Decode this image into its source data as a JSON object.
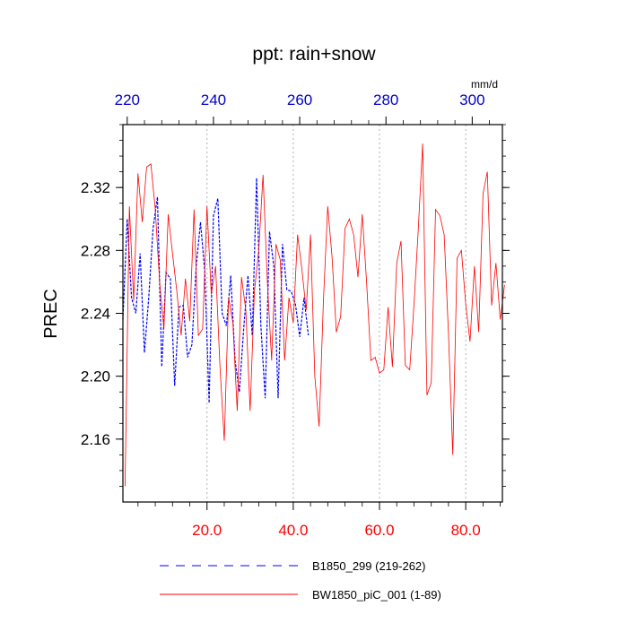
{
  "chart_data": {
    "type": "line",
    "title": "ppt: rain+snow",
    "ylabel": "PREC",
    "top_axis_units": "mm/d",
    "ylim": [
      2.12,
      2.36
    ],
    "y_ticks": [
      "2.16",
      "2.20",
      "2.24",
      "2.28",
      "2.32"
    ],
    "y_tick_values": [
      2.16,
      2.2,
      2.24,
      2.28,
      2.32
    ],
    "bottom_axis": {
      "range": [
        0.5,
        88.5
      ],
      "ticks": [
        "20.0",
        "40.0",
        "60.0",
        "80.0"
      ],
      "tick_values": [
        20,
        40,
        60,
        80
      ],
      "color": "#ff0000"
    },
    "top_axis": {
      "range": [
        219,
        307
      ],
      "ticks": [
        "220",
        "240",
        "260",
        "280",
        "300"
      ],
      "tick_values": [
        220,
        240,
        260,
        280,
        300
      ],
      "color": "#0000cc"
    },
    "grid": "vertical dashed at bottom-axis ticks",
    "legend_position": "bottom",
    "series": [
      {
        "name": "B1850_299 (219-262)",
        "axis": "top",
        "color": "#0000ff",
        "dash": "dashed",
        "x": [
          219,
          220,
          221,
          222,
          223,
          224,
          225,
          226,
          227,
          228,
          229,
          230,
          231,
          232,
          233,
          234,
          235,
          236,
          237,
          238,
          239,
          240,
          241,
          242,
          243,
          244,
          245,
          246,
          247,
          248,
          249,
          250,
          251,
          252,
          253,
          254,
          255,
          256,
          257,
          258,
          259,
          260,
          261,
          262
        ],
        "values": [
          2.236,
          2.3,
          2.25,
          2.24,
          2.278,
          2.215,
          2.25,
          2.294,
          2.314,
          2.206,
          2.266,
          2.262,
          2.194,
          2.244,
          2.245,
          2.212,
          2.22,
          2.27,
          2.298,
          2.266,
          2.183,
          2.302,
          2.313,
          2.24,
          2.232,
          2.264,
          2.21,
          2.19,
          2.23,
          2.264,
          2.226,
          2.326,
          2.232,
          2.186,
          2.292,
          2.27,
          2.186,
          2.284,
          2.255,
          2.254,
          2.246,
          2.225,
          2.25,
          2.226
        ]
      },
      {
        "name": "BW1850_piC_001 (1-89)",
        "axis": "bottom",
        "color": "#ff0000",
        "dash": "solid",
        "x": [
          1,
          2,
          3,
          4,
          5,
          6,
          7,
          8,
          9,
          10,
          11,
          12,
          13,
          14,
          15,
          16,
          17,
          18,
          19,
          20,
          21,
          22,
          23,
          24,
          25,
          26,
          27,
          28,
          29,
          30,
          31,
          32,
          33,
          34,
          35,
          36,
          37,
          38,
          39,
          40,
          41,
          42,
          43,
          44,
          45,
          46,
          47,
          48,
          49,
          50,
          51,
          52,
          53,
          54,
          55,
          56,
          57,
          58,
          59,
          60,
          61,
          62,
          63,
          64,
          65,
          66,
          67,
          68,
          69,
          70,
          71,
          72,
          73,
          74,
          75,
          76,
          77,
          78,
          79,
          80,
          81,
          82,
          83,
          84,
          85,
          86,
          87,
          88,
          89
        ],
        "values": [
          2.13,
          2.308,
          2.248,
          2.329,
          2.298,
          2.333,
          2.335,
          2.306,
          2.26,
          2.23,
          2.303,
          2.278,
          2.254,
          2.226,
          2.262,
          2.235,
          2.306,
          2.226,
          2.23,
          2.308,
          2.252,
          2.27,
          2.206,
          2.159,
          2.25,
          2.234,
          2.178,
          2.263,
          2.242,
          2.178,
          2.254,
          2.28,
          2.328,
          2.26,
          2.21,
          2.284,
          2.274,
          2.21,
          2.25,
          2.234,
          2.29,
          2.268,
          2.242,
          2.29,
          2.2,
          2.168,
          2.248,
          2.308,
          2.276,
          2.228,
          2.238,
          2.294,
          2.3,
          2.29,
          2.263,
          2.303,
          2.26,
          2.21,
          2.212,
          2.202,
          2.204,
          2.244,
          2.206,
          2.272,
          2.286,
          2.207,
          2.204,
          2.246,
          2.294,
          2.348,
          2.188,
          2.196,
          2.306,
          2.302,
          2.29,
          2.227,
          2.15,
          2.275,
          2.28,
          2.246,
          2.222,
          2.27,
          2.228,
          2.316,
          2.33,
          2.245,
          2.272,
          2.236,
          2.258
        ]
      }
    ]
  }
}
